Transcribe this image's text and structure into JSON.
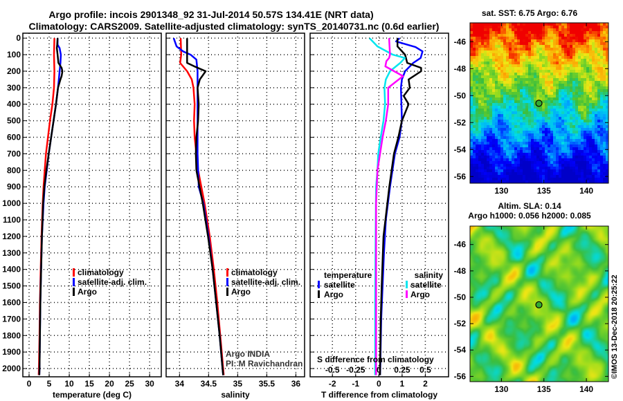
{
  "title": {
    "line1": "Argo profile: incois 2901348_92 31-Jul-2014 50.57S 134.41E (NRT data)",
    "line2": "Climatology: CARS2009. Satellite-adjusted climatology: synTS_20140731.nc (0.6d earlier)"
  },
  "y_axis": {
    "ylim": [
      -30,
      2050
    ],
    "ticks": [
      0,
      100,
      200,
      300,
      400,
      500,
      600,
      700,
      800,
      900,
      1000,
      1100,
      1200,
      1300,
      1400,
      1500,
      1600,
      1700,
      1800,
      1900,
      2000
    ]
  },
  "chart_data": [
    {
      "type": "line",
      "id": "temperature",
      "xlabel": "temperature (deg C)",
      "xlim": [
        -1.55,
        32.9
      ],
      "xticks": [
        0,
        5,
        10,
        15,
        20,
        25,
        30
      ],
      "xticklabels": [
        "0",
        "5",
        "10",
        "15",
        "20",
        "25",
        "30"
      ],
      "legend": [
        "climatology",
        "satellite-adj. clim.",
        "Argo"
      ],
      "legend_placement": "center-right",
      "series": [
        {
          "name": "climatology",
          "color": "#ff0000",
          "p": [
            0,
            100,
            200,
            300,
            400,
            500,
            600,
            700,
            800,
            900,
            1000,
            1200,
            1400,
            1600,
            1800,
            2000,
            2040
          ],
          "x": [
            6.3,
            6.2,
            6.3,
            6.2,
            5.8,
            5.2,
            4.7,
            4.2,
            3.9,
            3.6,
            3.4,
            3.1,
            2.9,
            2.7,
            2.6,
            2.45,
            2.4
          ]
        },
        {
          "name": "satellite-adj. clim.",
          "color": "#0000ff",
          "p": [
            0,
            40,
            60,
            100,
            150,
            200,
            250,
            300,
            400,
            500,
            600,
            700,
            800,
            900,
            1000,
            1200,
            1400,
            1600,
            1800,
            2000,
            2040
          ],
          "x": [
            7.1,
            7.1,
            7.6,
            7.9,
            7.8,
            7.6,
            7.4,
            7.2,
            6.7,
            6.1,
            5.5,
            4.9,
            4.4,
            3.9,
            3.6,
            3.2,
            3.0,
            2.8,
            2.7,
            2.6,
            2.55
          ]
        },
        {
          "name": "Argo",
          "color": "#000000",
          "p": [
            0,
            40,
            60,
            100,
            150,
            180,
            200,
            230,
            250,
            300,
            400,
            500,
            600,
            700,
            800,
            900,
            1000,
            1200,
            1400,
            1600,
            1800,
            2000,
            2040
          ],
          "x": [
            7.1,
            7.0,
            6.9,
            7.1,
            7.3,
            8.1,
            8.3,
            8.1,
            7.8,
            7.2,
            6.7,
            6.1,
            5.5,
            4.9,
            4.3,
            3.8,
            3.5,
            3.2,
            3.0,
            2.8,
            2.7,
            2.6,
            2.55
          ]
        }
      ]
    },
    {
      "type": "line",
      "id": "salinity",
      "xlabel": "salinity",
      "xlim": [
        33.77,
        36.15
      ],
      "xticks": [
        34,
        34.5,
        35,
        35.5,
        36
      ],
      "xticklabels": [
        "34",
        "34.5",
        "35",
        "35.5",
        "36"
      ],
      "legend": [
        "climatology",
        "satellite-adj. clim.",
        "Argo"
      ],
      "legend_placement": "center-right",
      "annotation": [
        "Argo INDIA",
        "PI: M Ravichandran"
      ],
      "series": [
        {
          "name": "climatology",
          "color": "#ff0000",
          "p": [
            0,
            100,
            150,
            200,
            250,
            300,
            400,
            500,
            600,
            800,
            1000,
            1200,
            1400,
            1600,
            1800,
            2000,
            2040
          ],
          "x": [
            34.02,
            34.03,
            34.01,
            34.13,
            34.21,
            34.24,
            34.26,
            34.25,
            34.26,
            34.32,
            34.43,
            34.52,
            34.59,
            34.65,
            34.7,
            34.75,
            34.76
          ]
        },
        {
          "name": "satellite-adj. clim.",
          "color": "#0000ff",
          "p": [
            0,
            50,
            80,
            100,
            130,
            200,
            300,
            500,
            700,
            900,
            1000,
            1200,
            1400,
            1600,
            1800,
            2000,
            2040
          ],
          "x": [
            33.9,
            33.95,
            34.06,
            34.19,
            34.29,
            34.31,
            34.31,
            34.31,
            34.31,
            34.33,
            34.41,
            34.5,
            34.57,
            34.63,
            34.69,
            34.74,
            34.75
          ]
        },
        {
          "name": "Argo",
          "color": "#000000",
          "p": [
            0,
            150,
            170,
            200,
            250,
            300,
            400,
            500,
            600,
            700,
            800,
            1000,
            1200,
            1400,
            1600,
            1800,
            2000,
            2040
          ],
          "x": [
            34.13,
            34.13,
            34.25,
            34.45,
            34.35,
            34.31,
            34.33,
            34.32,
            34.29,
            34.28,
            34.29,
            34.4,
            34.49,
            34.57,
            34.63,
            34.69,
            34.74,
            34.75
          ]
        }
      ]
    },
    {
      "type": "line",
      "id": "difference",
      "xlabel": "T difference from climatology",
      "xlim": [
        -2.96,
        3.0
      ],
      "xticks": [
        -2,
        -1,
        0,
        1,
        2
      ],
      "xticklabels": [
        "-2",
        "-1",
        "0",
        "1",
        "2"
      ],
      "secondary_xlabel": "S difference from climatology",
      "secondary_xlim": [
        -0.74,
        0.75
      ],
      "secondary_xticks": [
        -0.5,
        -0.25,
        0,
        0.25,
        0.5
      ],
      "secondary_xticklabels": [
        "-0.5",
        "-0.25",
        "0",
        "0.25",
        "0.5"
      ],
      "legend_temperature": {
        "title": "temperature",
        "items": [
          "satellite",
          "Argo"
        ]
      },
      "legend_salinity": {
        "title": "salinity",
        "items": [
          "satellite",
          "Argo"
        ]
      },
      "series": [
        {
          "name": "temperature satellite",
          "color": "#0000ff",
          "axis": "T",
          "p": [
            0,
            20,
            54,
            80,
            120,
            150,
            200,
            250,
            300,
            500,
            600,
            700,
            900,
            1100,
            1300,
            1500,
            1700,
            2000,
            2040
          ],
          "x": [
            0.89,
            0.74,
            1.58,
            1.88,
            1.8,
            1.48,
            1.13,
            0.99,
            0.95,
            0.99,
            0.89,
            0.69,
            0.48,
            0.3,
            0.22,
            0.16,
            0.1,
            0.06,
            0.05
          ]
        },
        {
          "name": "temperature Argo",
          "color": "#000000",
          "axis": "T",
          "p": [
            0,
            50,
            100,
            150,
            180,
            200,
            250,
            300,
            350,
            400,
            500,
            600,
            700,
            900,
            1200,
            1500,
            1700,
            2000,
            2040
          ],
          "x": [
            0.8,
            0.8,
            1.13,
            1.22,
            1.82,
            1.82,
            1.28,
            1.33,
            1.07,
            1.28,
            0.99,
            0.84,
            0.65,
            0.45,
            0.2,
            0.12,
            0.08,
            0.05,
            0.05
          ]
        },
        {
          "name": "salinity satellite",
          "color": "#00e5ee",
          "axis": "S",
          "p": [
            0,
            50,
            100,
            120,
            150,
            200,
            250,
            300,
            400,
            500,
            600,
            700,
            800,
            900,
            1200,
            1600,
            2000,
            2040
          ],
          "x": [
            -0.1,
            -0.015,
            0.15,
            0.28,
            0.23,
            0.12,
            0.075,
            0.06,
            0.067,
            0.05,
            0.02,
            -0.007,
            -0.015,
            -0.03,
            -0.035,
            -0.04,
            -0.04,
            -0.04
          ]
        },
        {
          "name": "salinity Argo",
          "color": "#ff00ff",
          "axis": "S",
          "p": [
            0,
            100,
            120,
            140,
            171,
            230,
            300,
            400,
            500,
            600,
            800,
            1000,
            1400,
            2000,
            2040
          ],
          "x": [
            0.11,
            0.12,
            0.11,
            0.08,
            0.07,
            0.26,
            0.1,
            0.1,
            0.075,
            0.04,
            -0.015,
            -0.03,
            -0.03,
            -0.03,
            -0.03
          ]
        }
      ]
    }
  ],
  "maps": [
    {
      "id": "sst",
      "title": "sat. SST: 6.75 Argo: 6.76",
      "lon_ticks": [
        "130",
        "135",
        "140"
      ],
      "lat_ticks": [
        "-46",
        "-48",
        "-50",
        "-52",
        "-54",
        "-56"
      ],
      "marker": {
        "lon": 134.41,
        "lat": -50.57
      }
    },
    {
      "id": "sla",
      "title_line1": "Altim. SLA: 0.14",
      "title_line2": "Argo h1000: 0.056 h2000: 0.085",
      "lon_ticks": [
        "130",
        "135",
        "140"
      ],
      "lat_ticks": [
        "-46",
        "-48",
        "-50",
        "-52",
        "-54",
        "-56"
      ],
      "marker": {
        "lon": 134.41,
        "lat": -50.57
      }
    }
  ],
  "credit": "©IMOS 13-Dec-2018 20:25:22"
}
